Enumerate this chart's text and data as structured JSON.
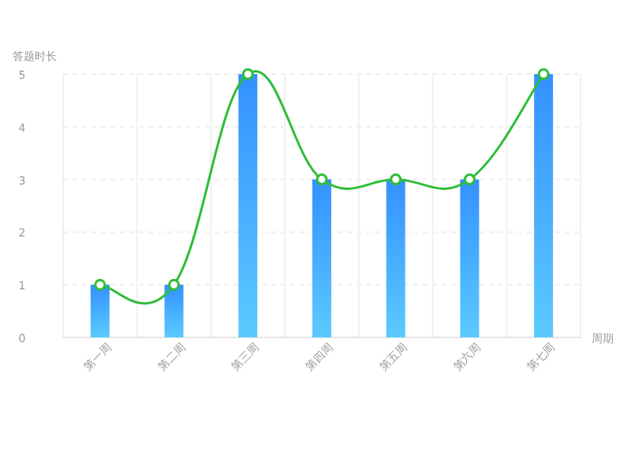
{
  "chart_data": {
    "type": "bar",
    "ylabel": "答题时长",
    "xlabel": "周期",
    "categories": [
      "第一周",
      "第二周",
      "第三周",
      "第四周",
      "第五周",
      "第六周",
      "第七周"
    ],
    "series": [
      {
        "color": "#3391ff",
        "values": [
          1,
          1,
          5,
          3,
          3,
          3,
          5
        ]
      },
      {
        "type": "line",
        "color": "#2dbd3a",
        "marker": "circle",
        "values": [
          1,
          1,
          5,
          3,
          3,
          3,
          5
        ]
      }
    ],
    "ylim": [
      0,
      5
    ],
    "yticks": [
      0,
      1,
      2,
      3,
      4,
      5
    ],
    "grid": true
  }
}
